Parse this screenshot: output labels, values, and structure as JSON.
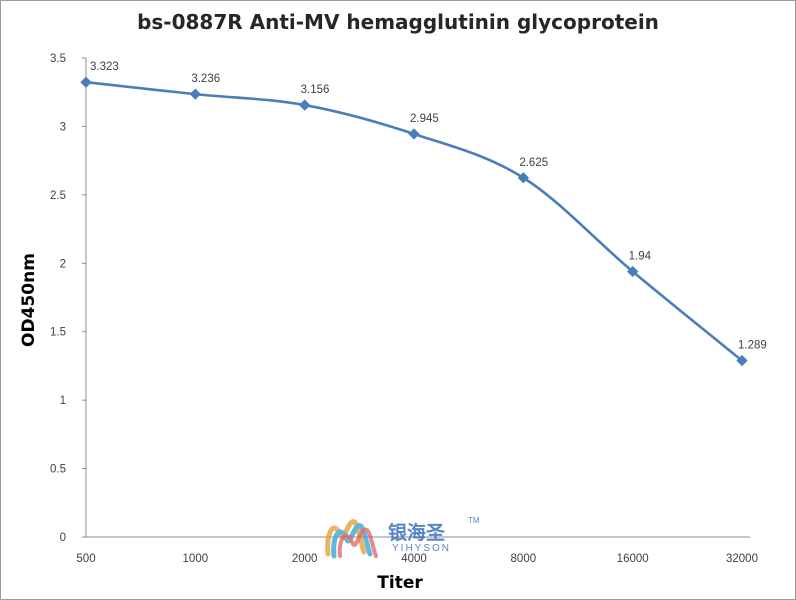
{
  "chart_data": {
    "type": "line",
    "title": "bs-0887R Anti-MV hemagglutinin glycoprotein",
    "xlabel": "Titer",
    "ylabel": "OD450nm",
    "categories": [
      "500",
      "1000",
      "2000",
      "4000",
      "8000",
      "16000",
      "32000"
    ],
    "series": [
      {
        "values": [
          3.323,
          3.236,
          3.156,
          2.945,
          2.625,
          1.94,
          1.289
        ],
        "labels": [
          "3.323",
          "3.236",
          "3.156",
          "2.945",
          "2.625",
          "1.94",
          "1.289"
        ]
      }
    ],
    "yticks": [
      "0",
      "0.5",
      "1",
      "1.5",
      "2",
      "2.5",
      "3",
      "3.5"
    ],
    "ylim": [
      0,
      3.5
    ],
    "grid": false,
    "legend": "none",
    "line_color": "#4a7ebb"
  },
  "watermark": {
    "cn": "银海圣",
    "tm": "TM",
    "en": "YIHYSON"
  }
}
